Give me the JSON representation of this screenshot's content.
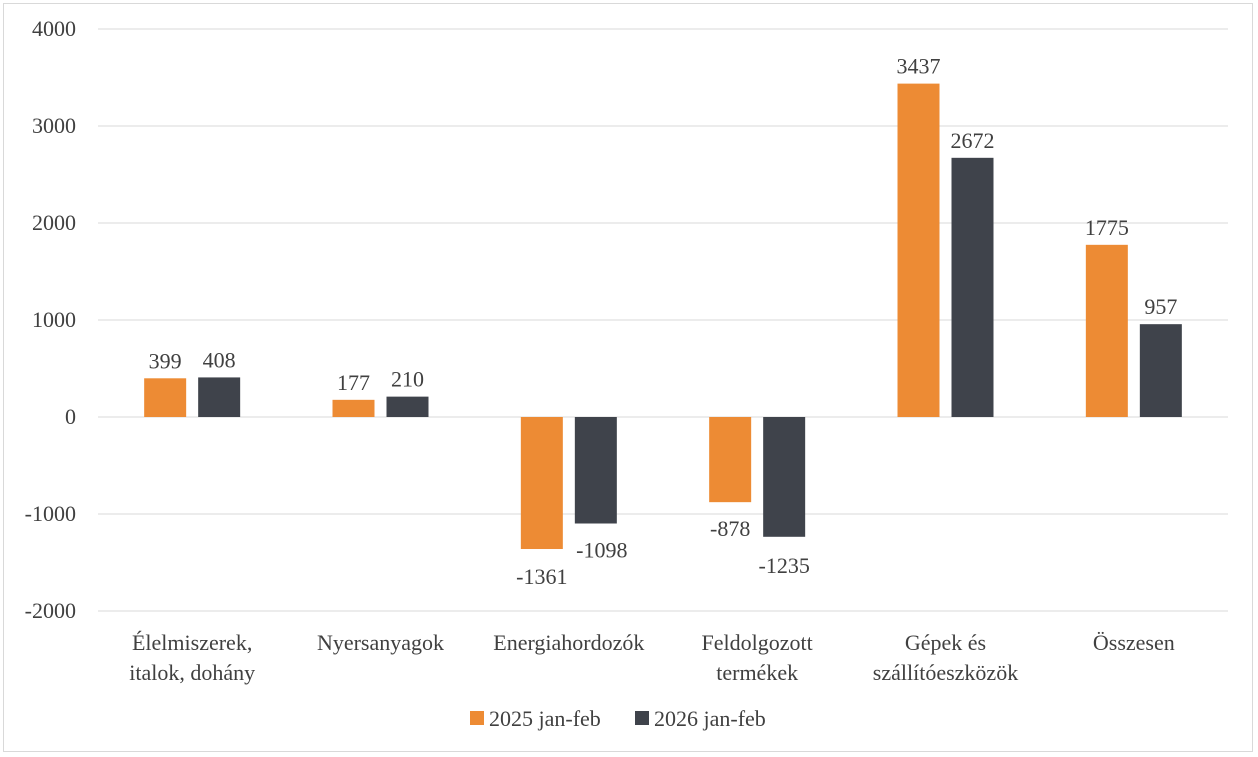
{
  "chart_data": {
    "type": "bar",
    "title": "",
    "xlabel": "",
    "ylabel": "",
    "ylim": [
      -2000,
      4000
    ],
    "yticks": [
      4000,
      3000,
      2000,
      1000,
      0,
      -1000,
      -2000
    ],
    "yticks_labels": [
      "4000",
      "3000",
      "2000",
      "1000",
      "0",
      "-1000",
      "-2000"
    ],
    "categories": [
      [
        "Élelmiszerek,",
        "italok, dohány"
      ],
      [
        "Nyersanyagok"
      ],
      [
        "Energiahordozók"
      ],
      [
        "Feldolgozott",
        "termékek"
      ],
      [
        "Gépek és",
        "szállítóeszközök"
      ],
      [
        "Összesen"
      ]
    ],
    "series": [
      {
        "name": "2025 jan-feb",
        "color": "#ed8b34",
        "values": [
          399,
          177,
          -1361,
          -878,
          3437,
          1775
        ]
      },
      {
        "name": "2026 jan-feb",
        "color": "#3f434b",
        "values": [
          408,
          210,
          -1098,
          -1235,
          2672,
          957
        ]
      }
    ],
    "grid": true,
    "legend_position": "bottom"
  }
}
